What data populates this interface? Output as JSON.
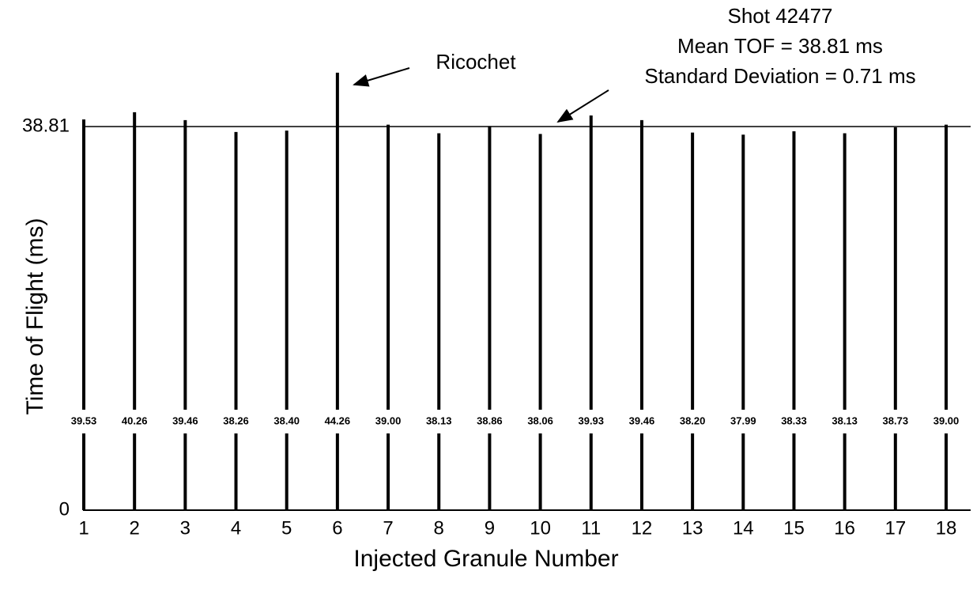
{
  "chart_data": {
    "type": "bar",
    "title": [
      "Shot 42477",
      "Mean TOF = 38.81 ms",
      "Standard Deviation = 0.71 ms"
    ],
    "annotations": [
      "Ricochet"
    ],
    "x_label": "Injected Granule Number",
    "y_label": "Time of Flight (ms)",
    "categories": [
      "1",
      "2",
      "3",
      "4",
      "5",
      "6",
      "7",
      "8",
      "9",
      "10",
      "11",
      "12",
      "13",
      "14",
      "15",
      "16",
      "17",
      "18"
    ],
    "values": [
      39.53,
      40.26,
      39.46,
      38.26,
      38.4,
      44.26,
      39.0,
      38.13,
      38.86,
      38.06,
      39.93,
      39.46,
      38.2,
      37.99,
      38.33,
      38.13,
      38.73,
      39.0
    ],
    "value_labels": [
      "39.53",
      "40.26",
      "39.46",
      "38.26",
      "38.40",
      "44.26",
      "39.00",
      "38.13",
      "38.86",
      "38.06",
      "39.93",
      "39.46",
      "38.20",
      "37.99",
      "38.33",
      "38.13",
      "38.73",
      "39.00"
    ],
    "color": "#000000",
    "ylim": [
      0,
      38.81
    ],
    "yticks": [
      0,
      38.81
    ],
    "grid": true
  }
}
